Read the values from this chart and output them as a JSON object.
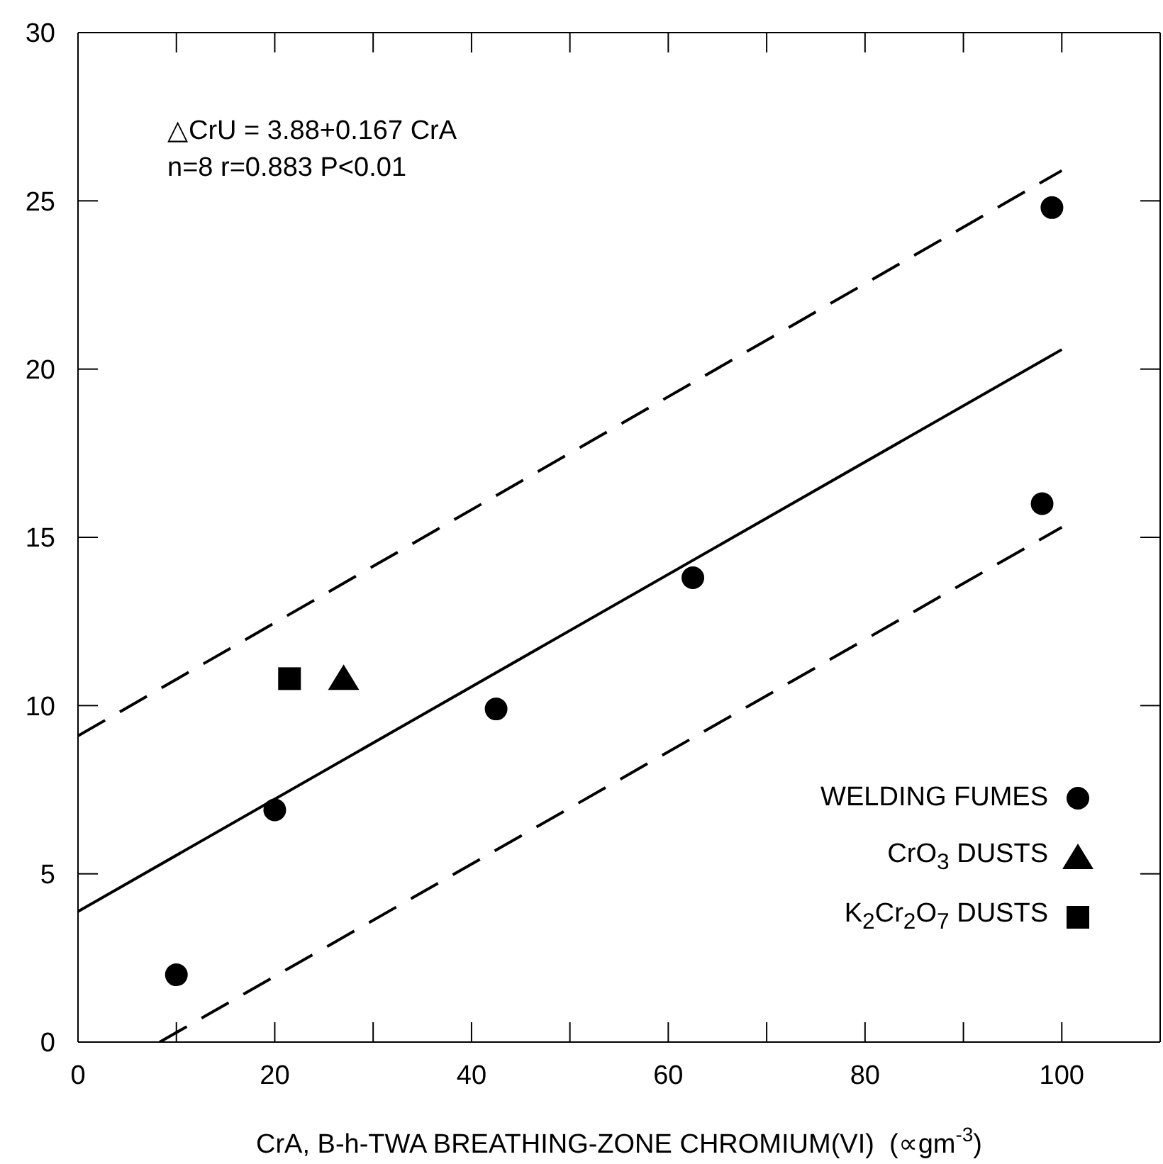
{
  "chart_data": {
    "type": "scatter",
    "xlabel": "CrA, B-h-TWA BREATHING-ZONE CHROMIUM(VI)  (∝gm$^{-3}$)",
    "annotations": [
      "△CrU = 3.88+0.167 CrA",
      "n=8  r=0.883 P<0.01"
    ],
    "xlim": [
      0,
      110
    ],
    "xticks": [
      0,
      {
        "value": 10,
        "label": null
      },
      20,
      {
        "value": 30,
        "label": null
      },
      40,
      {
        "value": 50,
        "label": null
      },
      60,
      {
        "value": 70,
        "label": null
      },
      80,
      {
        "value": 90,
        "label": null
      },
      100
    ],
    "ylim": [
      0,
      30
    ],
    "yticks": [
      0,
      5,
      10,
      15,
      20,
      25,
      30
    ],
    "legend": "bottom right",
    "series": [
      {
        "name": "WELDING FUMES",
        "color": "#000000",
        "marker": "circle",
        "x": [
          10,
          20,
          42.5,
          62.5,
          98,
          99
        ],
        "values": [
          2,
          6.9,
          9.9,
          13.8,
          16,
          24.8
        ]
      },
      {
        "name": "CrO$_{3}$ DUSTS",
        "color": "#000000",
        "marker": "triangle",
        "x": [
          27
        ],
        "values": [
          10.8
        ]
      },
      {
        "name": "K$_{2}$Cr$_{2}$O$_{7}$ DUSTS",
        "color": "#000000",
        "marker": "square",
        "x": [
          21.5
        ],
        "values": [
          10.8
        ]
      },
      {
        "type": "line",
        "color": "#000000",
        "line_style": "solid",
        "marker": "none",
        "x": [
          0,
          100
        ],
        "values": [
          3.88,
          20.58
        ]
      },
      {
        "type": "line",
        "color": "#000000",
        "line_style": "dashed",
        "marker": "none",
        "x": [
          0,
          100
        ],
        "values": [
          9.1,
          25.9
        ]
      },
      {
        "type": "line",
        "color": "#000000",
        "line_style": "dashed",
        "marker": "none",
        "x": [
          8.3,
          100
        ],
        "values": [
          0,
          15.3
        ]
      }
    ]
  }
}
